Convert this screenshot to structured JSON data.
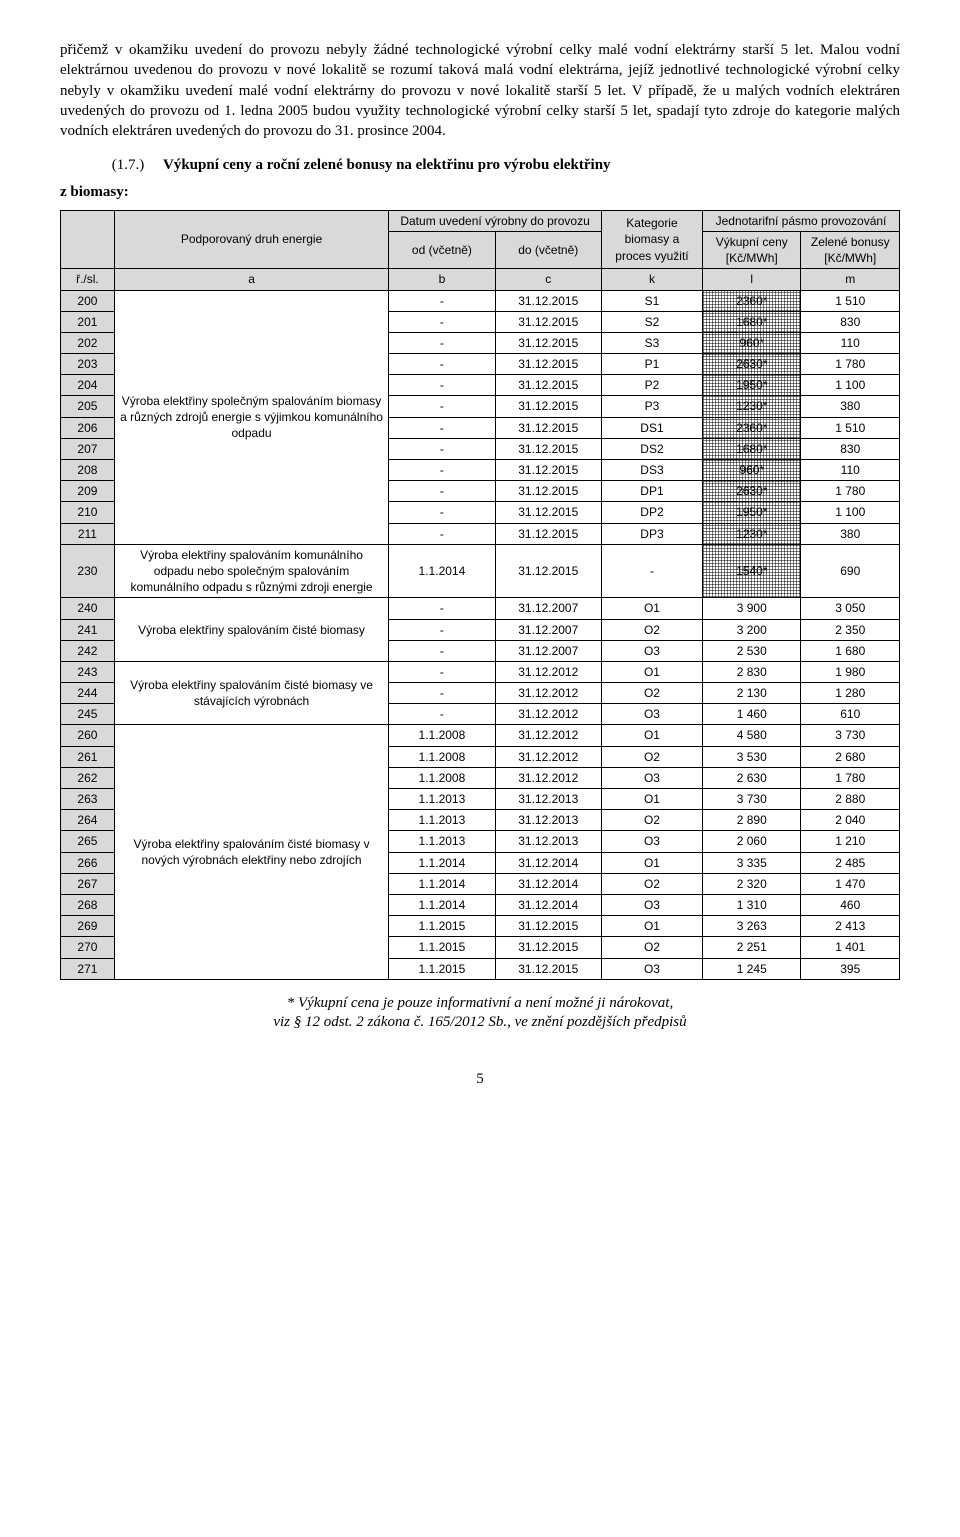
{
  "para1": "přičemž v okamžiku uvedení do provozu nebyly žádné technologické výrobní celky malé vodní elektrárny starší 5 let. Malou vodní elektrárnou uvedenou do provozu v nové lokalitě se rozumí taková malá vodní elektrárna, jejíž jednotlivé technologické výrobní celky nebyly v okamžiku uvedení malé vodní elektrárny do provozu v nové lokalitě starší 5 let. V případě, že u malých vodních elektráren uvedených do provozu od 1. ledna 2005 budou využity technologické výrobní celky starší 5 let, spadají tyto zdroje do kategorie malých vodních elektráren uvedených do provozu do 31. prosince 2004.",
  "heading_num": "(1.7.)",
  "heading_bold1": "Výkupní ceny a roční zelené bonusy na elektřinu pro výrobu elektřiny",
  "heading_bold2": "z biomasy:",
  "headers": {
    "podp": "Podporovaný druh energie",
    "datum": "Datum uvedení výrobny do provozu",
    "od": "od (včetně)",
    "do": "do (včetně)",
    "kat": "Kategorie biomasy a proces využití",
    "pasmo": "Jednotarifní pásmo provozování",
    "vyk": "Výkupní ceny [Kč/MWh]",
    "zel": "Zelené bonusy [Kč/MWh]",
    "r": "ř./sl.",
    "a": "a",
    "b": "b",
    "c": "c",
    "k": "k",
    "l": "l",
    "m": "m"
  },
  "groups": {
    "g1": "Výroba elektřiny společným spalováním biomasy a různých zdrojů energie s výjimkou komunálního odpadu",
    "g2": "Výroba elektřiny spalováním komunálního odpadu nebo společným spalováním komunálního odpadu s různými zdroji energie",
    "g3": "Výroba elektřiny spalováním čisté biomasy",
    "g4": "Výroba elektřiny spalováním čisté biomasy ve stávajících výrobnách",
    "g5": "Výroba elektřiny spalováním čisté biomasy v nových výrobnách elektřiny nebo zdrojích"
  },
  "rows": [
    {
      "id": "200",
      "g": "g1",
      "od": "-",
      "do": "31.12.2015",
      "k": "S1",
      "l": "2360*",
      "lh": true,
      "m": "1 510"
    },
    {
      "id": "201",
      "g": "g1",
      "od": "-",
      "do": "31.12.2015",
      "k": "S2",
      "l": "1680*",
      "lh": true,
      "m": "830"
    },
    {
      "id": "202",
      "g": "g1",
      "od": "-",
      "do": "31.12.2015",
      "k": "S3",
      "l": "960*",
      "lh": true,
      "m": "110"
    },
    {
      "id": "203",
      "g": "g1",
      "od": "-",
      "do": "31.12.2015",
      "k": "P1",
      "l": "2630*",
      "lh": true,
      "m": "1 780"
    },
    {
      "id": "204",
      "g": "g1",
      "od": "-",
      "do": "31.12.2015",
      "k": "P2",
      "l": "1950*",
      "lh": true,
      "m": "1 100"
    },
    {
      "id": "205",
      "g": "g1",
      "od": "-",
      "do": "31.12.2015",
      "k": "P3",
      "l": "1230*",
      "lh": true,
      "m": "380"
    },
    {
      "id": "206",
      "g": "g1",
      "od": "-",
      "do": "31.12.2015",
      "k": "DS1",
      "l": "2360*",
      "lh": true,
      "m": "1 510"
    },
    {
      "id": "207",
      "g": "g1",
      "od": "-",
      "do": "31.12.2015",
      "k": "DS2",
      "l": "1680*",
      "lh": true,
      "m": "830"
    },
    {
      "id": "208",
      "g": "g1",
      "od": "-",
      "do": "31.12.2015",
      "k": "DS3",
      "l": "960*",
      "lh": true,
      "m": "110"
    },
    {
      "id": "209",
      "g": "g1",
      "od": "-",
      "do": "31.12.2015",
      "k": "DP1",
      "l": "2630*",
      "lh": true,
      "m": "1 780"
    },
    {
      "id": "210",
      "g": "g1",
      "od": "-",
      "do": "31.12.2015",
      "k": "DP2",
      "l": "1950*",
      "lh": true,
      "m": "1 100"
    },
    {
      "id": "211",
      "g": "g1",
      "od": "-",
      "do": "31.12.2015",
      "k": "DP3",
      "l": "1230*",
      "lh": true,
      "m": "380"
    },
    {
      "id": "230",
      "g": "g2",
      "od": "1.1.2014",
      "do": "31.12.2015",
      "k": "-",
      "l": "1540*",
      "lh": true,
      "m": "690"
    },
    {
      "id": "240",
      "g": "g3",
      "od": "-",
      "do": "31.12.2007",
      "k": "O1",
      "l": "3 900",
      "lh": false,
      "m": "3 050"
    },
    {
      "id": "241",
      "g": "g3",
      "od": "-",
      "do": "31.12.2007",
      "k": "O2",
      "l": "3 200",
      "lh": false,
      "m": "2 350"
    },
    {
      "id": "242",
      "g": "g3",
      "od": "-",
      "do": "31.12.2007",
      "k": "O3",
      "l": "2 530",
      "lh": false,
      "m": "1 680"
    },
    {
      "id": "243",
      "g": "g4",
      "od": "-",
      "do": "31.12.2012",
      "k": "O1",
      "l": "2 830",
      "lh": false,
      "m": "1 980"
    },
    {
      "id": "244",
      "g": "g4",
      "od": "-",
      "do": "31.12.2012",
      "k": "O2",
      "l": "2 130",
      "lh": false,
      "m": "1 280"
    },
    {
      "id": "245",
      "g": "g4",
      "od": "-",
      "do": "31.12.2012",
      "k": "O3",
      "l": "1 460",
      "lh": false,
      "m": "610"
    },
    {
      "id": "260",
      "g": "g5",
      "od": "1.1.2008",
      "do": "31.12.2012",
      "k": "O1",
      "l": "4 580",
      "lh": false,
      "m": "3 730"
    },
    {
      "id": "261",
      "g": "g5",
      "od": "1.1.2008",
      "do": "31.12.2012",
      "k": "O2",
      "l": "3 530",
      "lh": false,
      "m": "2 680"
    },
    {
      "id": "262",
      "g": "g5",
      "od": "1.1.2008",
      "do": "31.12.2012",
      "k": "O3",
      "l": "2 630",
      "lh": false,
      "m": "1 780"
    },
    {
      "id": "263",
      "g": "g5",
      "od": "1.1.2013",
      "do": "31.12.2013",
      "k": "O1",
      "l": "3 730",
      "lh": false,
      "m": "2 880"
    },
    {
      "id": "264",
      "g": "g5",
      "od": "1.1.2013",
      "do": "31.12.2013",
      "k": "O2",
      "l": "2 890",
      "lh": false,
      "m": "2 040"
    },
    {
      "id": "265",
      "g": "g5",
      "od": "1.1.2013",
      "do": "31.12.2013",
      "k": "O3",
      "l": "2 060",
      "lh": false,
      "m": "1 210"
    },
    {
      "id": "266",
      "g": "g5",
      "od": "1.1.2014",
      "do": "31.12.2014",
      "k": "O1",
      "l": "3 335",
      "lh": false,
      "m": "2 485"
    },
    {
      "id": "267",
      "g": "g5",
      "od": "1.1.2014",
      "do": "31.12.2014",
      "k": "O2",
      "l": "2 320",
      "lh": false,
      "m": "1 470"
    },
    {
      "id": "268",
      "g": "g5",
      "od": "1.1.2014",
      "do": "31.12.2014",
      "k": "O3",
      "l": "1 310",
      "lh": false,
      "m": "460"
    },
    {
      "id": "269",
      "g": "g5",
      "od": "1.1.2015",
      "do": "31.12.2015",
      "k": "O1",
      "l": "3 263",
      "lh": false,
      "m": "2 413"
    },
    {
      "id": "270",
      "g": "g5",
      "od": "1.1.2015",
      "do": "31.12.2015",
      "k": "O2",
      "l": "2 251",
      "lh": false,
      "m": "1 401"
    },
    {
      "id": "271",
      "g": "g5",
      "od": "1.1.2015",
      "do": "31.12.2015",
      "k": "O3",
      "l": "1 245",
      "lh": false,
      "m": "395"
    }
  ],
  "groupSpans": {
    "g1": 12,
    "g2": 1,
    "g3": 3,
    "g4": 3,
    "g5": 12
  },
  "footnote1": "* Výkupní cena je pouze informativní a není možné ji nárokovat,",
  "footnote2": "viz § 12 odst. 2 zákona č. 165/2012 Sb., ve znění pozdějších předpisů",
  "pageNum": "5"
}
